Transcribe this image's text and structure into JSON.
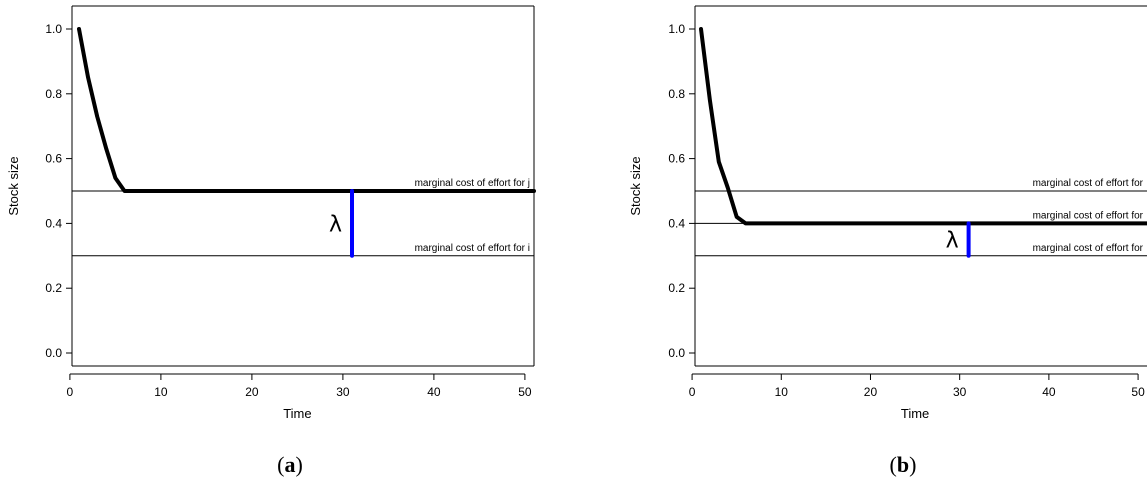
{
  "chart_data": [
    {
      "type": "line",
      "panel_label": {
        "open": "(",
        "letter": "a",
        "close": ")"
      },
      "xlabel": "Time",
      "ylabel": "Stock size",
      "xlim": [
        1,
        51
      ],
      "ylim": [
        0,
        1
      ],
      "xticks": [
        0,
        10,
        20,
        30,
        40,
        50
      ],
      "yticks": [
        0.0,
        0.2,
        0.4,
        0.6,
        0.8,
        1.0
      ],
      "ytick_labels": [
        "0.0",
        "0.2",
        "0.4",
        "0.6",
        "0.8",
        "1.0"
      ],
      "series": [
        {
          "x": [
            1,
            2,
            3,
            4,
            5,
            6,
            7,
            10,
            15,
            20,
            25,
            30,
            35,
            40,
            45,
            50,
            52
          ],
          "values": [
            1.0,
            0.85,
            0.73,
            0.63,
            0.54,
            0.5,
            0.5,
            0.5,
            0.5,
            0.5,
            0.5,
            0.5,
            0.5,
            0.5,
            0.5,
            0.5,
            0.5
          ],
          "color": "#000000"
        }
      ],
      "reference_lines": [
        {
          "y": 0.5,
          "label": "marginal cost of effort for j"
        },
        {
          "y": 0.3,
          "label": "marginal cost of effort for i"
        }
      ],
      "annotation": {
        "text": "λ",
        "x": 31,
        "y_from": 0.3,
        "y_to": 0.5,
        "color": "#0000ff"
      }
    },
    {
      "type": "line",
      "panel_label": {
        "open": "(",
        "letter": "b",
        "close": ")"
      },
      "xlabel": "Time",
      "ylabel": "Stock size",
      "xlim": [
        1,
        51
      ],
      "ylim": [
        0,
        1
      ],
      "xticks": [
        0,
        10,
        20,
        30,
        40,
        50
      ],
      "yticks": [
        0.0,
        0.2,
        0.4,
        0.6,
        0.8,
        1.0
      ],
      "ytick_labels": [
        "0.0",
        "0.2",
        "0.4",
        "0.6",
        "0.8",
        "1.0"
      ],
      "series": [
        {
          "x": [
            1,
            2,
            3,
            4,
            5,
            6,
            7,
            10,
            15,
            20,
            25,
            30,
            35,
            40,
            45,
            50,
            52
          ],
          "values": [
            1.0,
            0.78,
            0.59,
            0.51,
            0.42,
            0.4,
            0.4,
            0.4,
            0.4,
            0.4,
            0.4,
            0.4,
            0.4,
            0.4,
            0.4,
            0.4,
            0.4
          ],
          "color": "#000000"
        }
      ],
      "reference_lines": [
        {
          "y": 0.5,
          "label": "marginal cost of effort for"
        },
        {
          "y": 0.4,
          "label": "marginal cost of effort for"
        },
        {
          "y": 0.3,
          "label": "marginal cost of effort for"
        }
      ],
      "annotation": {
        "text": "λ",
        "x": 31,
        "y_from": 0.3,
        "y_to": 0.4,
        "color": "#0000ff"
      }
    }
  ]
}
